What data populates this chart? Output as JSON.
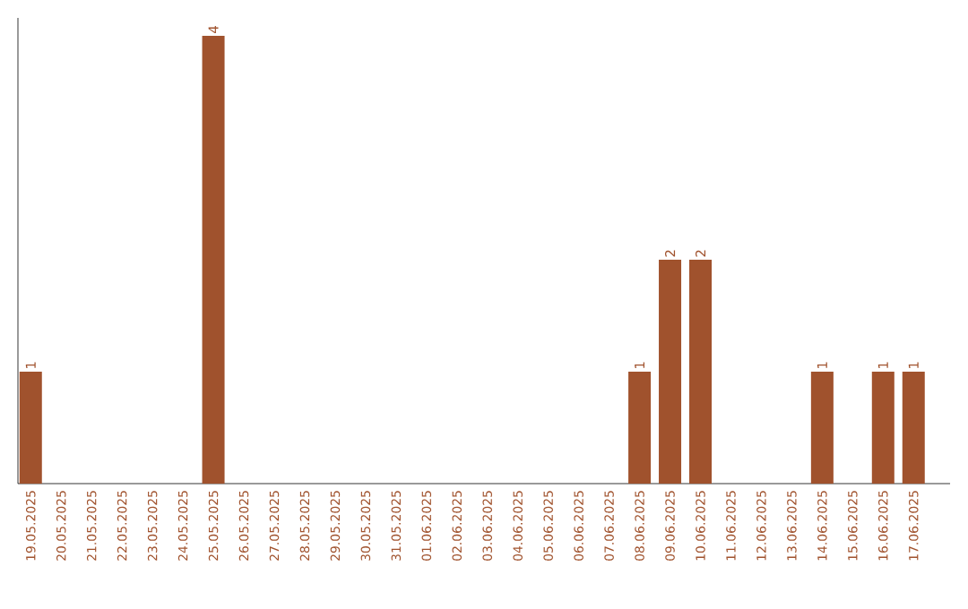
{
  "chart_data": {
    "type": "bar",
    "color": "#a0522d",
    "categories": [
      "19.05.2025",
      "20.05.2025",
      "21.05.2025",
      "22.05.2025",
      "23.05.2025",
      "24.05.2025",
      "25.05.2025",
      "26.05.2025",
      "27.05.2025",
      "28.05.2025",
      "29.05.2025",
      "30.05.2025",
      "31.05.2025",
      "01.06.2025",
      "02.06.2025",
      "03.06.2025",
      "04.06.2025",
      "05.06.2025",
      "06.06.2025",
      "07.06.2025",
      "08.06.2025",
      "09.06.2025",
      "10.06.2025",
      "11.06.2025",
      "12.06.2025",
      "13.06.2025",
      "14.06.2025",
      "15.06.2025",
      "16.06.2025",
      "17.06.2025"
    ],
    "values": [
      1,
      0,
      0,
      0,
      0,
      0,
      4,
      0,
      0,
      0,
      0,
      0,
      0,
      0,
      0,
      0,
      0,
      0,
      0,
      0,
      1,
      2,
      2,
      0,
      0,
      0,
      1,
      0,
      1,
      1
    ],
    "value_labels": [
      "1",
      null,
      null,
      null,
      null,
      null,
      "4",
      null,
      null,
      null,
      null,
      null,
      null,
      null,
      null,
      null,
      null,
      null,
      null,
      null,
      "1",
      "2",
      "2",
      null,
      null,
      null,
      "1",
      null,
      "1",
      "1"
    ]
  }
}
